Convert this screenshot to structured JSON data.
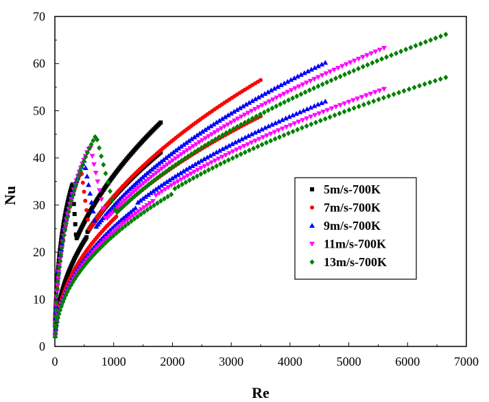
{
  "chart_data": {
    "type": "scatter",
    "xlabel": "Re",
    "ylabel": "Nu",
    "xlim": [
      0,
      7000
    ],
    "ylim": [
      0,
      70
    ],
    "x_ticks": [
      0,
      1000,
      2000,
      3000,
      4000,
      5000,
      6000,
      7000
    ],
    "y_ticks": [
      0,
      10,
      20,
      30,
      40,
      50,
      60,
      70
    ],
    "grid": false,
    "legend_position": "center-right",
    "series": [
      {
        "name": "5m/s-700K",
        "color": "#000000",
        "marker": "square",
        "peak_re": 300,
        "peak_nu": 34.5,
        "max_re": 1800,
        "max_nu": 47.5,
        "x": [
          20,
          80,
          150,
          220,
          300,
          400,
          500,
          600,
          700,
          900,
          1200,
          1500,
          1800
        ],
        "y": [
          3,
          15,
          26,
          32,
          34.5,
          34,
          31,
          28,
          30,
          35,
          40,
          44,
          47.5
        ]
      },
      {
        "name": "7m/s-700K",
        "color": "#ff0000",
        "marker": "circle",
        "peak_re": 450,
        "peak_nu": 37.2,
        "max_re": 3500,
        "max_nu": 56.5,
        "x": [
          20,
          100,
          200,
          300,
          450,
          600,
          800,
          1200,
          2000,
          3000,
          3500
        ],
        "y": [
          3,
          14,
          27,
          34,
          37.2,
          36,
          33,
          39,
          47,
          53.5,
          56.5
        ]
      },
      {
        "name": "9m/s-700K",
        "color": "#0000ff",
        "marker": "triangle-up",
        "peak_re": 500,
        "peak_nu": 39.5,
        "max_re": 4600,
        "max_nu": 60.2,
        "x": [
          20,
          100,
          250,
          400,
          500,
          700,
          1000,
          1600,
          2500,
          3600,
          4600
        ],
        "y": [
          3,
          12,
          27,
          37,
          39.5,
          38,
          37,
          42,
          49.5,
          55.5,
          60.2
        ]
      },
      {
        "name": "11m/s-700K",
        "color": "#ff00ff",
        "marker": "triangle-down",
        "peak_re": 600,
        "peak_nu": 42.5,
        "max_re": 5600,
        "max_nu": 63.3,
        "x": [
          20,
          120,
          300,
          450,
          600,
          800,
          1200,
          2000,
          3000,
          4300,
          5600
        ],
        "y": [
          3,
          11,
          27,
          38,
          42.5,
          41.5,
          40,
          45.5,
          52,
          58,
          63.3
        ]
      },
      {
        "name": "13m/s-700K",
        "color": "#008000",
        "marker": "diamond",
        "peak_re": 700,
        "peak_nu": 44.8,
        "max_re": 6650,
        "max_nu": 66.2,
        "x": [
          20,
          150,
          350,
          550,
          700,
          900,
          1400,
          2300,
          3500,
          5000,
          6650
        ],
        "y": [
          3,
          11,
          28,
          39,
          44.8,
          42.5,
          41.5,
          47.5,
          54,
          60,
          66.2
        ]
      }
    ]
  }
}
